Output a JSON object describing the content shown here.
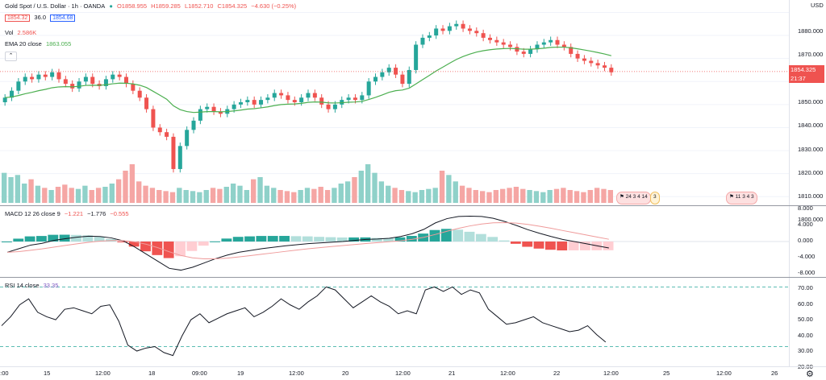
{
  "header": {
    "symbol": "Gold Spot / U.S. Dollar · 1h · OANDA",
    "open": "O1858.955",
    "high": "H1859.285",
    "low": "L1852.710",
    "close": "C1854.325",
    "change": "−4.630 (−0.25%)",
    "sell": "1854.32",
    "spread": "36.0",
    "buy": "1854.68"
  },
  "volume_legend": {
    "label": "Vol",
    "value": "2.586K"
  },
  "ema_legend": {
    "label": "EMA 20 close",
    "value": "1863.055"
  },
  "macd_legend": {
    "label": "MACD 12 26 close 9",
    "v1": "−1.221",
    "v2": "−1.776",
    "v3": "−0.555"
  },
  "rsi_legend": {
    "label": "RSI 14 close",
    "value": "33.35"
  },
  "price_axis": {
    "currency": "USD",
    "ticks": [
      "1880.000",
      "1870.000",
      "1860.000",
      "1850.000",
      "1840.000",
      "1830.000",
      "1820.000",
      "1810.000",
      "1800.000"
    ],
    "last_price": "1854.325",
    "countdown": "21:37"
  },
  "macd_axis": {
    "ticks": [
      "8.000",
      "4.000",
      "0.000",
      "-4.000",
      "-8.000"
    ]
  },
  "rsi_axis": {
    "ticks": [
      "70.00",
      "60.00",
      "50.00",
      "40.00",
      "30.00",
      "20.00"
    ]
  },
  "time_axis": {
    "ticks": [
      "2:00",
      "15",
      "12:00",
      "18",
      "09:00",
      "19",
      "12:00",
      "20",
      "12:00",
      "21",
      "12:00",
      "22",
      "12:00",
      "25",
      "12:00",
      "26"
    ]
  },
  "events": {
    "e1": "24 3 4 14",
    "e2": "3",
    "e3": "11 3 4 3"
  },
  "colors": {
    "up": "#26a69a",
    "down": "#ef5350",
    "ema": "#4caf50",
    "macd": "#131722",
    "signal": "#ef9a9a"
  },
  "chart_data": {
    "type": "candlestick",
    "last_close": 1854.325,
    "ema_last": 1863.055,
    "price_range": [
      1798,
      1884
    ],
    "macd_range": [
      -9,
      9
    ],
    "rsi_range": [
      20,
      74
    ],
    "rsi_levels": [
      70,
      30
    ],
    "close_series": [
      1843,
      1846,
      1850,
      1852,
      1851,
      1853,
      1852,
      1854,
      1851,
      1849,
      1847,
      1850,
      1852,
      1849,
      1848,
      1851,
      1853,
      1852,
      1849,
      1846,
      1843,
      1838,
      1830,
      1828,
      1826,
      1812,
      1822,
      1829,
      1833,
      1838,
      1839,
      1837,
      1836,
      1838,
      1840,
      1841,
      1842,
      1840,
      1842,
      1843,
      1845,
      1844,
      1842,
      1841,
      1843,
      1845,
      1843,
      1840,
      1838,
      1840,
      1842,
      1843,
      1842,
      1844,
      1850,
      1852,
      1854,
      1856,
      1853,
      1849,
      1855,
      1866,
      1869,
      1870,
      1873,
      1872,
      1874,
      1875,
      1873,
      1872,
      1871,
      1869,
      1868,
      1867,
      1866,
      1865,
      1863,
      1862,
      1864,
      1866,
      1867,
      1868,
      1866,
      1865,
      1862,
      1860,
      1859,
      1858,
      1857,
      1856,
      1854
    ],
    "volume_series": [
      28,
      24,
      26,
      18,
      22,
      16,
      14,
      12,
      15,
      17,
      14,
      13,
      16,
      12,
      14,
      15,
      18,
      22,
      30,
      36,
      20,
      16,
      14,
      12,
      11,
      10,
      14,
      12,
      11,
      10,
      12,
      14,
      13,
      15,
      18,
      16,
      12,
      22,
      24,
      16,
      14,
      12,
      11,
      10,
      12,
      14,
      13,
      15,
      12,
      14,
      18,
      20,
      24,
      30,
      36,
      28,
      20,
      16,
      14,
      12,
      11,
      10,
      12,
      13,
      14,
      30,
      26,
      20,
      16,
      14,
      12,
      11,
      10,
      12,
      13,
      14,
      15,
      13,
      12,
      11,
      10,
      12,
      13,
      14,
      12,
      11,
      10,
      12,
      14,
      13,
      12
    ],
    "macd_series": [
      -3,
      -2,
      -1,
      -0.5,
      0.3,
      0.8,
      1.2,
      1.5,
      1.4,
      1.0,
      0.2,
      -1.5,
      -3.5,
      -5.5,
      -7.5,
      -8,
      -7.2,
      -6,
      -4.8,
      -3.8,
      -3,
      -2.5,
      -2,
      -1.6,
      -1.2,
      -0.9,
      -0.6,
      -0.4,
      -0.2,
      0,
      0.3,
      0.6,
      0.7,
      0.9,
      1.4,
      2.2,
      3.4,
      5.2,
      6.4,
      7,
      7.1,
      7,
      6.5,
      5.6,
      4.5,
      3.3,
      2.3,
      1.4,
      0.6,
      0,
      -0.6,
      -1.2,
      -1.8
    ],
    "rsi_series": [
      44,
      50,
      58,
      62,
      53,
      50,
      48,
      55,
      56,
      54,
      52,
      57,
      58,
      47,
      31,
      27,
      29,
      30,
      26,
      24,
      37,
      48,
      52,
      46,
      49,
      52,
      54,
      56,
      50,
      53,
      57,
      62,
      58,
      55,
      60,
      64,
      70,
      68,
      62,
      56,
      60,
      64,
      60,
      57,
      52,
      54,
      52,
      68,
      70,
      67,
      70,
      65,
      68,
      66,
      55,
      50,
      45,
      46,
      48,
      50,
      46,
      44,
      42,
      40,
      41,
      44,
      38,
      33
    ]
  }
}
